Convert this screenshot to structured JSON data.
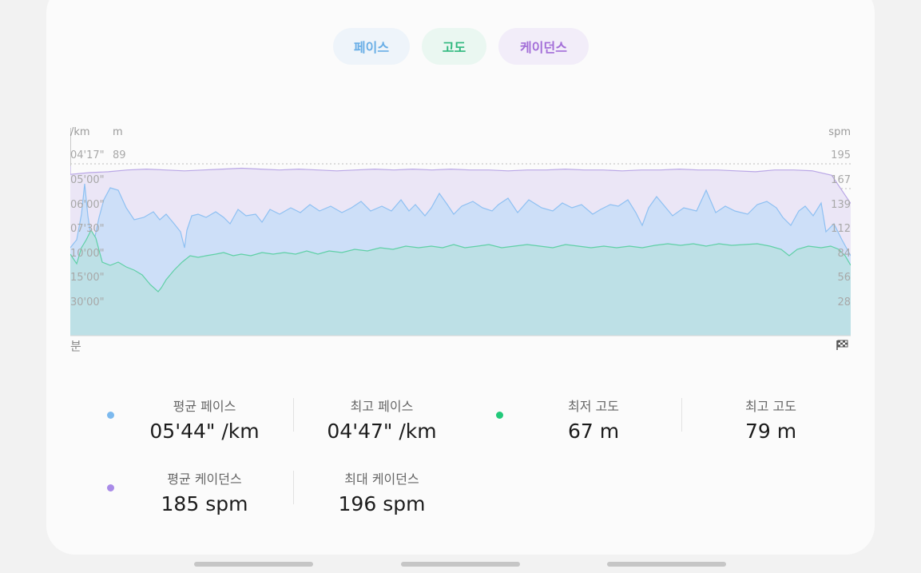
{
  "tabs": [
    {
      "label": "페이스"
    },
    {
      "label": "고도"
    },
    {
      "label": "케이던스"
    }
  ],
  "chart": {
    "left_unit_pace": "/km",
    "left_unit_alt": "m",
    "right_unit": "spm",
    "pace_ticks": [
      "04'17\"",
      "05'00\"",
      "06'00\"",
      "07'30\"",
      "10'00\"",
      "15'00\"",
      "30'00\""
    ],
    "alt_tick_top": "89",
    "cadence_ticks": [
      "195",
      "167",
      "139",
      "112",
      "84",
      "56",
      "28"
    ],
    "x_start_label": "분",
    "finish_icon": "checkered-flag-icon"
  },
  "chart_data": {
    "type": "area",
    "series": [
      {
        "name": "케이던스",
        "unit": "spm",
        "color": "#b9a6e6",
        "values": [
          183,
          185,
          186,
          188,
          189,
          188,
          187,
          188,
          189,
          190,
          189,
          188,
          189,
          188,
          187,
          188,
          189,
          188,
          189,
          188,
          189,
          188,
          188,
          187,
          188,
          188,
          189,
          188,
          188,
          187,
          188,
          188,
          189,
          188,
          188,
          187,
          186,
          188,
          188,
          187,
          182,
          150
        ]
      },
      {
        "name": "페이스",
        "unit": "/km",
        "color": "#8ec0f2",
        "values": []
      },
      {
        "name": "고도",
        "unit": "m",
        "color": "#2fc98c",
        "values": []
      }
    ],
    "colors": {
      "cadence_fill": "#ebe6f6",
      "pace_fill": "#cddff8",
      "alt_fill": "#bde0e6"
    }
  },
  "stats": {
    "avg_pace": {
      "label": "평균 페이스",
      "value": "05'44\" /km"
    },
    "best_pace": {
      "label": "최고 페이스",
      "value": "04'47\" /km"
    },
    "min_alt": {
      "label": "최저 고도",
      "value": "67 m"
    },
    "max_alt": {
      "label": "최고 고도",
      "value": "79 m"
    },
    "avg_cad": {
      "label": "평균 케이던스",
      "value": "185 spm"
    },
    "max_cad": {
      "label": "최대 케이던스",
      "value": "196 spm"
    }
  },
  "colors": {
    "pace_dot": "#7cb9ee",
    "alt_dot": "#22c97a",
    "cad_dot": "#a98be8"
  }
}
